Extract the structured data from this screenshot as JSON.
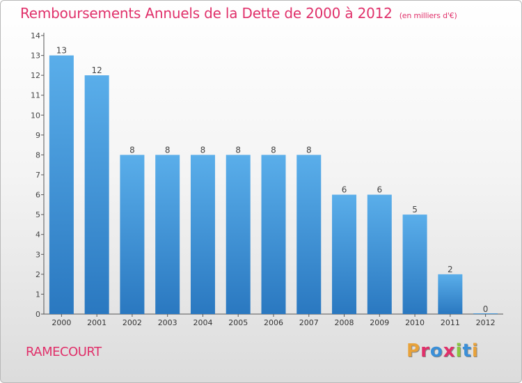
{
  "header": {
    "title": "Remboursements Annuels de la Dette de 2000 à 2012",
    "subtitle": "(en milliers d'€)"
  },
  "footer": {
    "commune": "RAMECOURT",
    "logo": "Proxiti",
    "logo_colors": [
      "#e8a23a",
      "#e0306a",
      "#3a8fd8",
      "#e0306a",
      "#8cc63f",
      "#3a8fd8",
      "#e8a23a"
    ]
  },
  "chart_data": {
    "type": "bar",
    "categories": [
      "2000",
      "2001",
      "2002",
      "2003",
      "2004",
      "2005",
      "2006",
      "2007",
      "2008",
      "2009",
      "2010",
      "2011",
      "2012"
    ],
    "values": [
      13,
      12,
      8,
      8,
      8,
      8,
      8,
      8,
      6,
      6,
      5,
      2,
      0
    ],
    "title": "Remboursements Annuels de la Dette de 2000 à 2012",
    "subtitle": "(en milliers d'€)",
    "ylim": [
      0,
      14
    ],
    "yticks": [
      0,
      1,
      2,
      3,
      4,
      5,
      6,
      7,
      8,
      9,
      10,
      11,
      12,
      13,
      14
    ],
    "bar_color": "#3d8fd6",
    "grid": false
  }
}
